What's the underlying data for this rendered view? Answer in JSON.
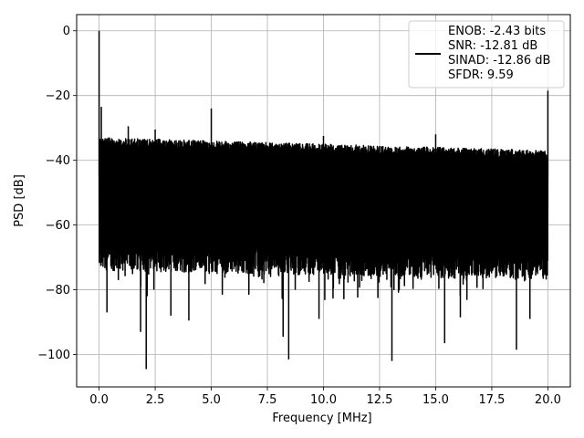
{
  "chart_data": {
    "type": "line",
    "title": "",
    "xlabel": "Frequency [MHz]",
    "ylabel": "PSD [dB]",
    "xlim": [
      -1.0,
      21.0
    ],
    "ylim": [
      -110,
      5
    ],
    "xticks": [
      0.0,
      2.5,
      5.0,
      7.5,
      10.0,
      12.5,
      15.0,
      17.5,
      20.0
    ],
    "xtick_labels": [
      "0.0",
      "2.5",
      "5.0",
      "7.5",
      "10.0",
      "12.5",
      "15.0",
      "17.5",
      "20.0"
    ],
    "yticks": [
      0,
      -20,
      -40,
      -60,
      -80,
      -100
    ],
    "ytick_labels": [
      "0",
      "−20",
      "−40",
      "−60",
      "−80",
      "−100"
    ],
    "grid": true,
    "legend_position": "top-right",
    "line_color": "#000000",
    "series": [
      {
        "noise_band": {
          "upper_start": -33,
          "upper_end": -37,
          "lower_start": -70,
          "lower_end": -73,
          "x_start": 0.0,
          "x_end": 20.0
        },
        "peaks": [
          {
            "x": 0.0,
            "y": 0.0
          },
          {
            "x": 0.1,
            "y": -23.5
          },
          {
            "x": 1.3,
            "y": -29.5
          },
          {
            "x": 2.5,
            "y": -30.5
          },
          {
            "x": 5.0,
            "y": -24.0
          },
          {
            "x": 10.0,
            "y": -32.5
          },
          {
            "x": 15.0,
            "y": -32.0
          },
          {
            "x": 20.0,
            "y": -18.5
          }
        ],
        "dips": [
          {
            "x": 0.35,
            "y": -87.0
          },
          {
            "x": 1.85,
            "y": -93.0
          },
          {
            "x": 2.1,
            "y": -104.5
          },
          {
            "x": 3.2,
            "y": -88.0
          },
          {
            "x": 4.0,
            "y": -89.5
          },
          {
            "x": 8.2,
            "y": -94.5
          },
          {
            "x": 8.45,
            "y": -101.5
          },
          {
            "x": 9.8,
            "y": -89.0
          },
          {
            "x": 13.05,
            "y": -102.0
          },
          {
            "x": 15.4,
            "y": -96.5
          },
          {
            "x": 16.1,
            "y": -88.5
          },
          {
            "x": 18.6,
            "y": -98.5
          },
          {
            "x": 19.2,
            "y": -89.0
          }
        ]
      }
    ],
    "legend_entries": [
      "ENOB: -2.43 bits",
      "SNR: -12.81 dB",
      "SINAD: -12.86 dB",
      "SFDR: 9.59"
    ]
  }
}
